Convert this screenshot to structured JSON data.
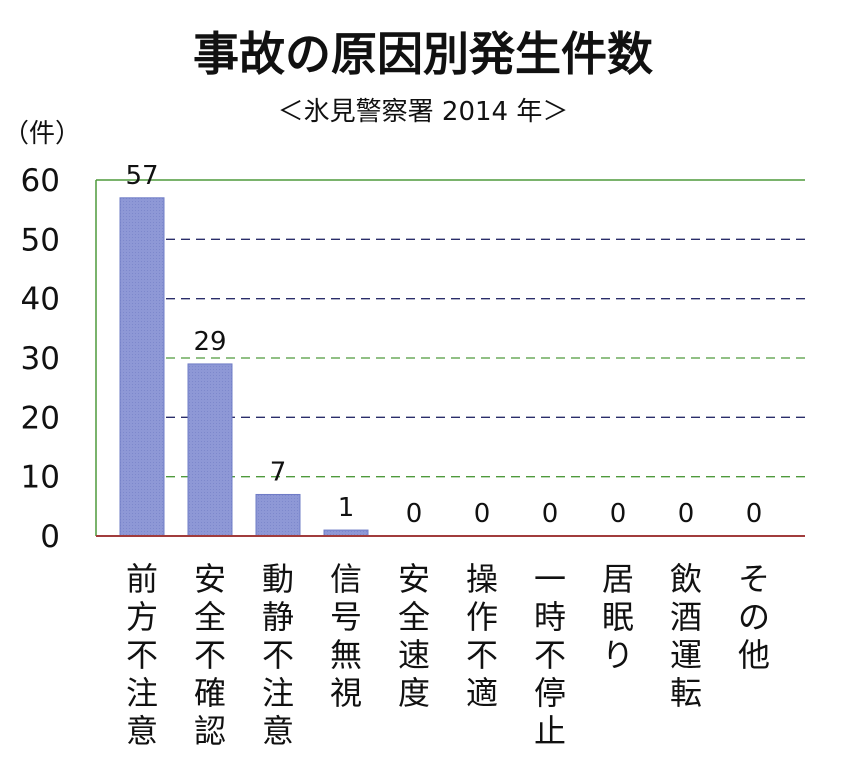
{
  "chart_data": {
    "type": "bar",
    "title": "事故の原因別発生件数",
    "subtitle": "＜氷見警察署 2014 年＞",
    "ylabel": "（件）",
    "xlabel": "",
    "ylim": [
      0,
      60
    ],
    "yticks": [
      0,
      10,
      20,
      30,
      40,
      50,
      60
    ],
    "categories": [
      "前方不注意",
      "安全不確認",
      "動静不注意",
      "信号無視",
      "安全速度",
      "操作不適",
      "一時不停止",
      "居眠り",
      "飲酒運転",
      "その他"
    ],
    "values": [
      57,
      29,
      7,
      1,
      0,
      0,
      0,
      0,
      0,
      0
    ],
    "data_labels": [
      "57",
      "29",
      "7",
      "1",
      "0",
      "0",
      "0",
      "0",
      "0",
      "0"
    ],
    "grid": "dashed horizontal",
    "colors": {
      "bar": "#8e98d6",
      "bar_border": "#6f7cc6",
      "axis": "#a13c3c",
      "grid_major": "#4f9a3c",
      "grid_minor": "#2a2d6a",
      "frame": "#4f9a3c",
      "text": "#111111"
    }
  }
}
